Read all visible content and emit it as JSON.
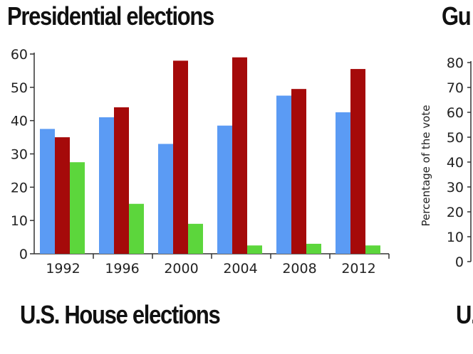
{
  "headings": {
    "presidential": "Presidential elections",
    "house": "U.S. House elections",
    "gubernatorial_partial": "Gu",
    "us_partial": "U."
  },
  "chart_data": [
    {
      "type": "bar",
      "title": "Presidential elections",
      "categories": [
        "1992",
        "1996",
        "2000",
        "2004",
        "2008",
        "2012"
      ],
      "series": [
        {
          "values": [
            37.5,
            41,
            33,
            38.5,
            47.5,
            42.5
          ],
          "color": "#5b9bf4"
        },
        {
          "values": [
            35,
            44,
            58,
            59,
            49.5,
            55.5
          ],
          "color": "#a50a0a"
        },
        {
          "values": [
            27.5,
            15,
            9,
            2.5,
            3,
            2.5
          ],
          "color": "#5cd63c"
        }
      ],
      "yticks": [
        0,
        10,
        20,
        30,
        40,
        50,
        60
      ],
      "ylim": [
        0,
        60
      ],
      "grid": false
    },
    {
      "type": "bar",
      "title": "Gu",
      "ylabel": "Percentage of the vote",
      "yticks": [
        0,
        10,
        20,
        30,
        40,
        50,
        60,
        70,
        80
      ],
      "ylim": [
        0,
        80
      ],
      "grid": false
    }
  ]
}
